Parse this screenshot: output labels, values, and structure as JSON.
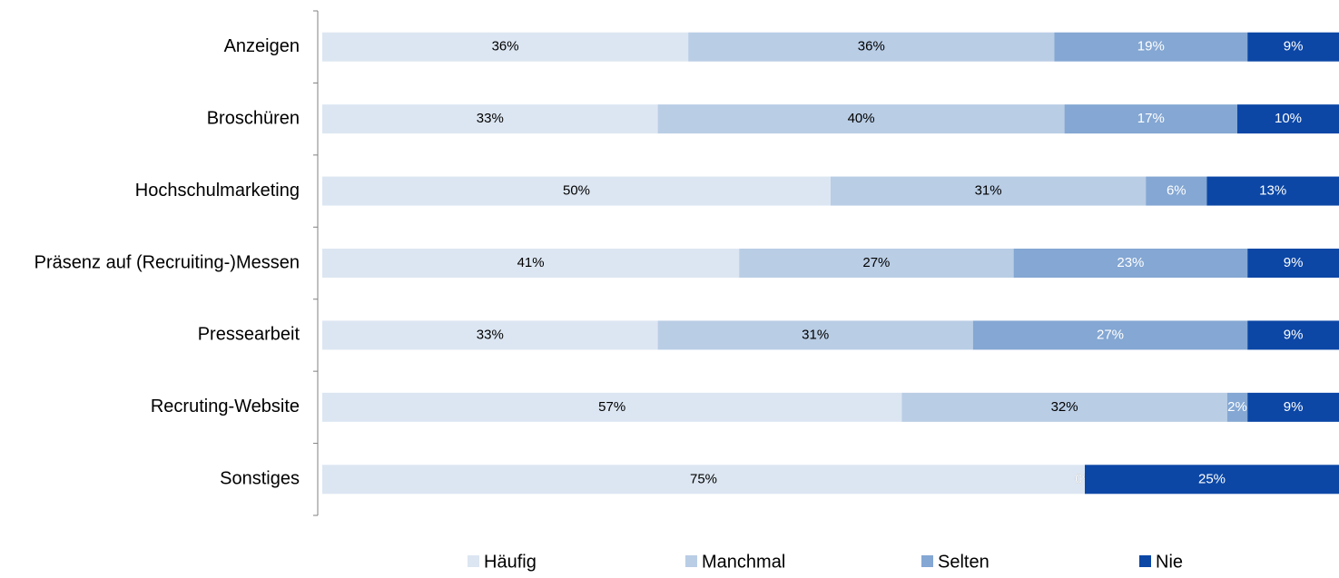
{
  "chart_data": {
    "type": "stacked_bar_horizontal",
    "categories": [
      "Anzeigen",
      "Broschüren",
      "Hochschulmarketing",
      "Präsenz auf (Recruiting-)Messen",
      "Pressearbeit",
      "Recruting-Website",
      "Sonstiges"
    ],
    "series": [
      {
        "name": "Häufig",
        "color": "#dce6f2",
        "label_color": "#000000",
        "values": [
          36,
          33,
          50,
          41,
          33,
          57,
          75
        ],
        "value_labels": [
          "36%",
          "33%",
          "50%",
          "41%",
          "33%",
          "57%",
          "75%"
        ]
      },
      {
        "name": "Manchmal",
        "color": "#b9cde5",
        "label_color": "#000000",
        "values": [
          36,
          40,
          31,
          27,
          31,
          32,
          0
        ],
        "value_labels": [
          "36%",
          "40%",
          "31%",
          "27%",
          "31%",
          "32%",
          "0%"
        ]
      },
      {
        "name": "Selten",
        "color": "#84a7d3",
        "label_color": "#ffffff",
        "values": [
          19,
          17,
          6,
          23,
          27,
          2,
          0
        ],
        "value_labels": [
          "19%",
          "17%",
          "6%",
          "23%",
          "27%",
          "2%",
          "0%"
        ]
      },
      {
        "name": "Nie",
        "color": "#0c47a6",
        "label_color": "#ffffff",
        "values": [
          9,
          10,
          13,
          9,
          9,
          9,
          25
        ],
        "value_labels": [
          "9%",
          "10%",
          "13%",
          "9%",
          "9%",
          "9%",
          "25%"
        ]
      }
    ],
    "xlim": [
      0,
      100
    ],
    "legend": "bottom"
  }
}
